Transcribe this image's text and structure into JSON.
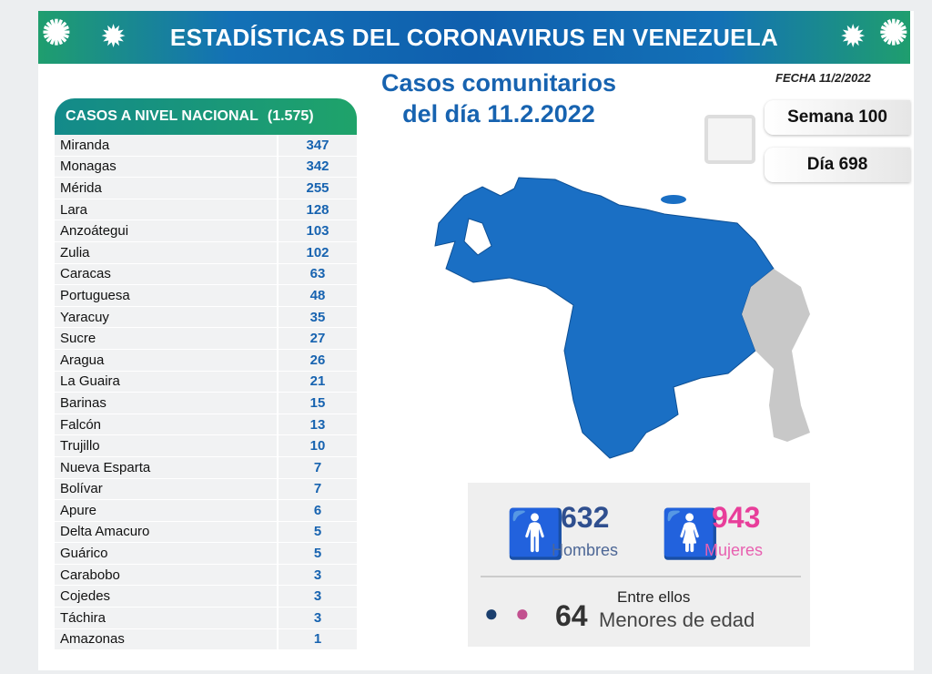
{
  "header": {
    "title": "ESTADÍSTICAS DEL CORONAVIRUS EN VENEZUELA",
    "fecha": "FECHA 11/2/2022"
  },
  "subtitle": {
    "line1": "Casos comunitarios",
    "line2": "del día 11.2.2022"
  },
  "week": {
    "semana": "Semana 100",
    "dia": "Día 698"
  },
  "table": {
    "title": "CASOS A NIVEL NACIONAL",
    "total": "(1.575)",
    "rows": [
      [
        "Miranda",
        "347"
      ],
      [
        "Monagas",
        "342"
      ],
      [
        "Mérida",
        "255"
      ],
      [
        "Lara",
        "128"
      ],
      [
        "Anzoátegui",
        "103"
      ],
      [
        "Zulia",
        "102"
      ],
      [
        "Caracas",
        "63"
      ],
      [
        "Portuguesa",
        "48"
      ],
      [
        "Yaracuy",
        "35"
      ],
      [
        "Sucre",
        "27"
      ],
      [
        "Aragua",
        "26"
      ],
      [
        "La Guaira",
        "21"
      ],
      [
        "Barinas",
        "15"
      ],
      [
        "Falcón",
        "13"
      ],
      [
        "Trujillo",
        "10"
      ],
      [
        "Nueva Esparta",
        "7"
      ],
      [
        "Bolívar",
        "7"
      ],
      [
        "Apure",
        "6"
      ],
      [
        "Delta Amacuro",
        "5"
      ],
      [
        "Guárico",
        "5"
      ],
      [
        "Carabobo",
        "3"
      ],
      [
        "Cojedes",
        "3"
      ],
      [
        "Táchira",
        "3"
      ],
      [
        "Amazonas",
        "1"
      ]
    ]
  },
  "stats": {
    "men": "632",
    "men_label": "Hombres",
    "women": "943",
    "women_label": "Mujeres",
    "between": "Entre ellos",
    "minors": "64",
    "minors_label": "Menores de edad"
  },
  "colors": {
    "blue": "#1763b0",
    "men": "#1b3f6e",
    "women": "#e83e9a",
    "map": "#1a6fc4"
  }
}
